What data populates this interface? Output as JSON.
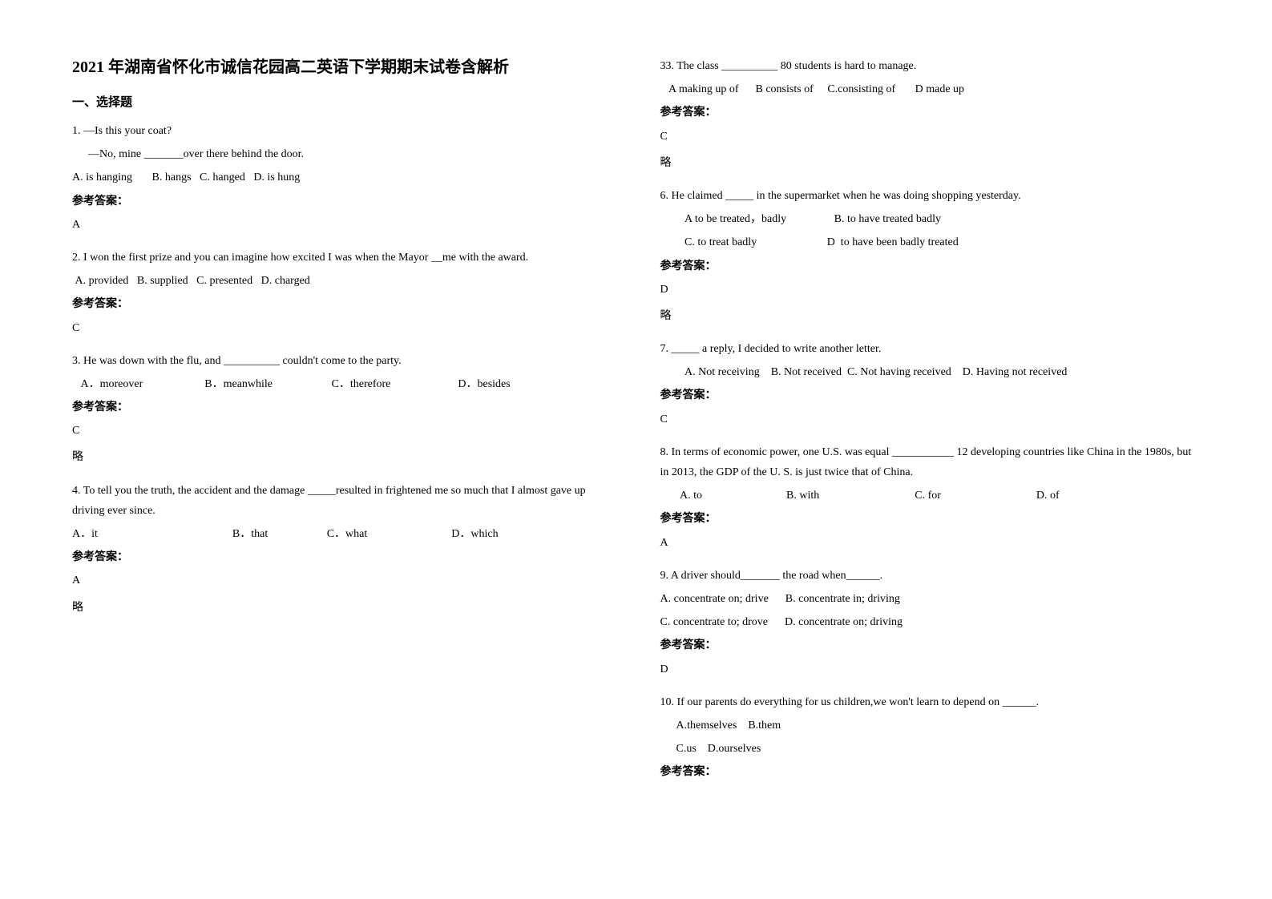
{
  "title": "2021 年湖南省怀化市诚信花园高二英语下学期期末试卷含解析",
  "section_header": "一、选择题",
  "left_questions": [
    {
      "num": "1.",
      "lines": [
        "—Is this your coat?",
        "—No, mine _______over there behind the door."
      ],
      "options_line": "A. is hanging       B. hangs   C. hanged   D. is hung",
      "answer_label": "参考答案：",
      "answer": "A",
      "note": ""
    },
    {
      "num": "2.",
      "lines": [
        "I won the first prize and you can imagine how excited I was when the Mayor __me with the award."
      ],
      "options_line": " A. provided   B. supplied   C. presented   D. charged",
      "answer_label": "参考答案：",
      "answer": "C",
      "note": ""
    },
    {
      "num": "3.",
      "lines": [
        "He was down with the flu, and __________ couldn't come to the party."
      ],
      "options_line": "   A．moreover                      B．meanwhile                     C．therefore                        D．besides",
      "answer_label": "参考答案：",
      "answer": "C",
      "note": "略"
    },
    {
      "num": "4.",
      "lines": [
        "To tell you the truth, the accident and the damage _____resulted in frightened me so much that I almost gave up driving ever since."
      ],
      "options_line": "A．it                                                B．that                     C．what                              D．which",
      "answer_label": "参考答案：",
      "answer": "A",
      "note": "略"
    }
  ],
  "right_questions": [
    {
      "num": "33.",
      "lines": [
        "The class __________ 80 students is hard to manage."
      ],
      "options_line": "   A making up of      B consists of     C.consisting of       D made up",
      "answer_label": "参考答案：",
      "answer": "C",
      "note": "略"
    },
    {
      "num": "6.",
      "lines": [
        "He claimed _____ in the supermarket when he was doing shopping yesterday.",
        "   A to be treated，badly                 B. to have treated badly",
        "   C. to treat badly                         D  to have been badly treated"
      ],
      "options_line": "",
      "answer_label": "参考答案：",
      "answer": "D",
      "note": "略"
    },
    {
      "num": "7.",
      "lines": [
        "_____ a reply, I decided to write another letter.",
        "   A. Not receiving    B. Not received  C. Not having received    D. Having not received"
      ],
      "options_line": "",
      "answer_label": "参考答案：",
      "answer": "C",
      "note": ""
    },
    {
      "num": "8.",
      "lines": [
        "In terms of economic power, one U.S. was equal ___________ 12 developing countries like China in the 1980s, but in 2013, the GDP of the U. S. is just twice that of China."
      ],
      "options_line": "       A. to                              B. with                                  C. for                                  D. of",
      "answer_label": "参考答案：",
      "answer": "A",
      "note": ""
    },
    {
      "num": "9.",
      "lines": [
        "A driver should_______ the road when______."
      ],
      "options_line": "A. concentrate on; drive      B. concentrate in; driving\nC. concentrate to; drove      D. concentrate on; driving",
      "answer_label": "参考答案：",
      "answer": "D",
      "note": ""
    },
    {
      "num": "10.",
      "lines": [
        "If our parents do everything for us children,we won't learn to depend on ______.",
        "A.themselves    B.them",
        "C.us    D.ourselves"
      ],
      "options_line": "",
      "answer_label": "参考答案：",
      "answer": "",
      "note": ""
    }
  ]
}
